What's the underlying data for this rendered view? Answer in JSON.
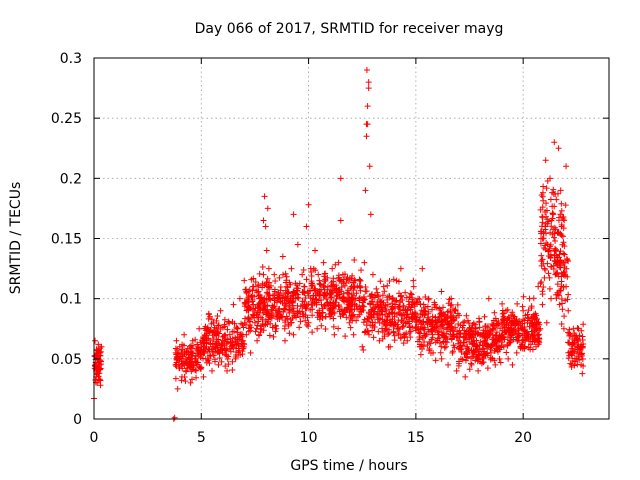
{
  "chart_data": {
    "type": "scatter",
    "title": "Day 066 of 2017, SRMTID for receiver mayg",
    "xlabel": "GPS time / hours",
    "ylabel": "SRMTID / TECUs",
    "xlim": [
      0,
      24
    ],
    "ylim": [
      0,
      0.3
    ],
    "xticks": [
      0,
      5,
      10,
      15,
      20
    ],
    "xtick_labels": [
      "0",
      "5",
      "10",
      "15",
      "20"
    ],
    "yticks": [
      0,
      0.05,
      0.1,
      0.15,
      0.2,
      0.25,
      0.3
    ],
    "ytick_labels": [
      "0",
      "0.05",
      "0.1",
      "0.15",
      "0.2",
      "0.25",
      "0.3"
    ],
    "grid": true,
    "marker": "+",
    "color": "#ff0000",
    "series": [
      {
        "name": "SRMTID",
        "x": [
          0.0,
          0.05,
          0.1,
          0.12,
          0.15,
          0.18,
          0.2,
          0.22,
          0.25,
          0.28,
          0.3,
          0.32,
          0.35,
          0.05,
          0.1,
          0.15,
          0.2,
          0.25,
          0.08,
          0.18,
          0.3,
          3.72,
          3.76,
          3.8,
          3.9,
          4.0,
          4.1,
          4.2,
          4.3,
          4.4,
          4.5,
          4.6,
          4.7,
          4.8,
          4.9,
          5.0,
          5.1,
          5.2,
          5.3,
          5.4,
          5.5,
          5.6,
          5.7,
          5.8,
          5.9,
          6.0,
          6.1,
          6.2,
          6.3,
          6.4,
          6.5,
          6.6,
          6.7,
          6.8,
          6.9,
          7.0,
          7.1,
          7.2,
          7.3,
          7.4,
          7.5,
          7.6,
          7.7,
          7.8,
          7.9,
          7.95,
          8.0,
          8.05,
          8.1,
          8.15,
          8.2,
          8.3,
          8.4,
          8.5,
          8.6,
          8.7,
          8.8,
          8.9,
          9.0,
          9.1,
          9.2,
          9.3,
          9.4,
          9.5,
          9.6,
          9.7,
          9.8,
          9.9,
          10.0,
          10.1,
          10.2,
          10.3,
          10.4,
          10.5,
          10.6,
          10.7,
          10.8,
          10.9,
          11.0,
          11.1,
          11.2,
          11.3,
          11.4,
          11.5,
          11.6,
          11.7,
          11.8,
          11.9,
          12.0,
          12.1,
          12.2,
          12.3,
          12.4,
          12.5,
          12.6,
          12.65,
          12.7,
          12.72,
          12.75,
          12.8,
          12.85,
          12.9,
          13.0,
          13.1,
          13.2,
          13.3,
          13.4,
          13.5,
          13.6,
          13.7,
          13.8,
          13.9,
          14.0,
          14.1,
          14.2,
          14.3,
          14.4,
          14.5,
          14.6,
          14.7,
          14.8,
          14.9,
          15.0,
          15.1,
          15.2,
          15.3,
          15.4,
          15.5,
          15.6,
          15.7,
          15.8,
          15.9,
          16.0,
          16.1,
          16.2,
          16.3,
          16.4,
          16.5,
          16.6,
          16.7,
          16.8,
          16.9,
          17.0,
          17.1,
          17.2,
          17.3,
          17.4,
          17.5,
          17.6,
          17.7,
          17.8,
          17.9,
          18.0,
          18.1,
          18.2,
          18.3,
          18.4,
          18.5,
          18.6,
          18.7,
          18.8,
          18.9,
          19.0,
          19.1,
          19.2,
          19.3,
          19.4,
          19.5,
          19.6,
          19.7,
          19.8,
          19.9,
          20.0,
          20.1,
          20.2,
          20.3,
          20.4,
          20.5,
          20.6,
          20.7,
          20.8,
          20.9,
          21.0,
          21.1,
          21.2,
          21.3,
          21.4,
          21.5,
          21.6,
          21.7,
          21.8,
          21.9,
          22.0,
          22.1,
          22.2,
          22.3,
          22.4,
          22.5,
          22.6,
          22.7,
          21.05,
          21.45,
          21.25,
          21.65,
          21.75,
          22.0,
          12.7,
          12.75,
          12.8,
          7.9,
          9.3,
          10.0,
          11.5
        ],
        "y": [
          0.017,
          0.065,
          0.04,
          0.058,
          0.03,
          0.05,
          0.062,
          0.033,
          0.045,
          0.055,
          0.028,
          0.048,
          0.06,
          0.052,
          0.035,
          0.042,
          0.057,
          0.038,
          0.047,
          0.054,
          0.032,
          0.0,
          0.001,
          0.045,
          0.025,
          0.06,
          0.035,
          0.07,
          0.04,
          0.055,
          0.03,
          0.065,
          0.05,
          0.045,
          0.075,
          0.055,
          0.035,
          0.068,
          0.05,
          0.085,
          0.04,
          0.06,
          0.075,
          0.045,
          0.09,
          0.055,
          0.07,
          0.04,
          0.08,
          0.06,
          0.095,
          0.05,
          0.075,
          0.1,
          0.06,
          0.115,
          0.07,
          0.09,
          0.055,
          0.11,
          0.08,
          0.065,
          0.1,
          0.075,
          0.12,
          0.185,
          0.16,
          0.14,
          0.175,
          0.125,
          0.1,
          0.09,
          0.12,
          0.075,
          0.105,
          0.085,
          0.135,
          0.065,
          0.11,
          0.09,
          0.125,
          0.07,
          0.1,
          0.145,
          0.085,
          0.12,
          0.095,
          0.16,
          0.08,
          0.125,
          0.1,
          0.14,
          0.075,
          0.115,
          0.095,
          0.13,
          0.085,
          0.11,
          0.09,
          0.125,
          0.07,
          0.105,
          0.13,
          0.2,
          0.12,
          0.09,
          0.105,
          0.08,
          0.11,
          0.07,
          0.1,
          0.085,
          0.115,
          0.06,
          0.13,
          0.19,
          0.235,
          0.29,
          0.245,
          0.275,
          0.21,
          0.17,
          0.12,
          0.08,
          0.105,
          0.065,
          0.09,
          0.11,
          0.075,
          0.095,
          0.06,
          0.1,
          0.085,
          0.115,
          0.07,
          0.125,
          0.08,
          0.105,
          0.065,
          0.095,
          0.085,
          0.11,
          0.075,
          0.1,
          0.06,
          0.125,
          0.09,
          0.07,
          0.1,
          0.08,
          0.055,
          0.095,
          0.065,
          0.085,
          0.05,
          0.075,
          0.06,
          0.045,
          0.07,
          0.055,
          0.09,
          0.04,
          0.065,
          0.05,
          0.08,
          0.035,
          0.06,
          0.075,
          0.045,
          0.065,
          0.055,
          0.04,
          0.07,
          0.05,
          0.085,
          0.06,
          0.1,
          0.055,
          0.075,
          0.045,
          0.065,
          0.05,
          0.08,
          0.06,
          0.09,
          0.05,
          0.07,
          0.045,
          0.085,
          0.055,
          0.075,
          0.06,
          0.09,
          0.065,
          0.08,
          0.1,
          0.07,
          0.085,
          0.06,
          0.11,
          0.075,
          0.095,
          0.125,
          0.08,
          0.14,
          0.1,
          0.17,
          0.12,
          0.155,
          0.095,
          0.13,
          0.075,
          0.11,
          0.09,
          0.07,
          0.055,
          0.065,
          0.05,
          0.06,
          0.045,
          0.215,
          0.23,
          0.2,
          0.225,
          0.19,
          0.21,
          0.245,
          0.26,
          0.28,
          0.165,
          0.17,
          0.178,
          0.165
        ]
      }
    ]
  }
}
